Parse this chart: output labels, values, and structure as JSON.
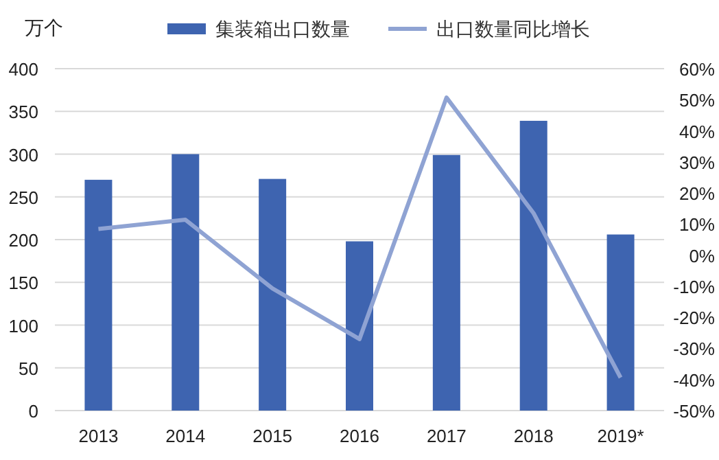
{
  "chart_data": {
    "type": "bar",
    "ylabel": "万个",
    "categories": [
      "2013",
      "2014",
      "2015",
      "2016",
      "2017",
      "2018",
      "2019*"
    ],
    "series": [
      {
        "name": "集装箱出口数量",
        "color": "#3e64b0",
        "values": [
          270,
          300,
          271,
          198,
          299,
          339,
          206
        ]
      },
      {
        "name": "出口数量同比增长",
        "type": "line",
        "axis": "y2",
        "color": "#8fa3d3",
        "values": [
          8.4,
          11.4,
          -10.7,
          -27,
          50.7,
          13.5,
          -39.4
        ]
      }
    ],
    "ylim": [
      0,
      400
    ],
    "yticks": [
      0,
      50,
      100,
      150,
      200,
      250,
      300,
      350,
      400
    ],
    "y2lim": [
      -50,
      60
    ],
    "y2ticks": [
      {
        "value": -50,
        "label": "-50%"
      },
      {
        "value": -40,
        "label": "-40%"
      },
      {
        "value": -30,
        "label": "-30%"
      },
      {
        "value": -20,
        "label": "-20%"
      },
      {
        "value": -10,
        "label": "-10%"
      },
      {
        "value": 0,
        "label": "0%"
      },
      {
        "value": 10,
        "label": "10%"
      },
      {
        "value": 20,
        "label": "20%"
      },
      {
        "value": 30,
        "label": "30%"
      },
      {
        "value": 40,
        "label": "40%"
      },
      {
        "value": 50,
        "label": "50%"
      },
      {
        "value": 60,
        "label": "60%"
      }
    ],
    "grid": "y",
    "legend": "top",
    "marker": "none",
    "line_style": "solid"
  }
}
